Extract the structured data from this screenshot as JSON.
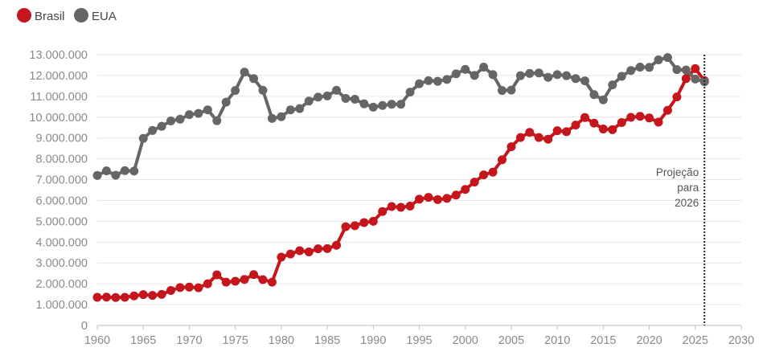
{
  "chart_data": {
    "type": "line",
    "legend": {
      "position": "top-left",
      "entries": [
        "Brasil",
        "EUA"
      ]
    },
    "grid": true,
    "xlim": [
      1960,
      2030
    ],
    "ylim": [
      0,
      13000000
    ],
    "x_ticks": [
      1960,
      1965,
      1970,
      1975,
      1980,
      1985,
      1990,
      1995,
      2000,
      2005,
      2010,
      2015,
      2020,
      2025,
      2030
    ],
    "y_ticks": [
      0,
      1000000,
      2000000,
      3000000,
      4000000,
      5000000,
      6000000,
      7000000,
      8000000,
      9000000,
      10000000,
      11000000,
      12000000,
      13000000
    ],
    "y_tick_labels": [
      "0",
      "1.000.000",
      "2.000.000",
      "3.000.000",
      "4.000.000",
      "5.000.000",
      "6.000.000",
      "7.000.000",
      "8.000.000",
      "9.000.000",
      "10.000.000",
      "11.000.000",
      "12.000.000",
      "13.000.000"
    ],
    "x_tick_labels": [
      "1960",
      "1965",
      "1970",
      "1975",
      "1980",
      "1985",
      "1990",
      "1995",
      "2000",
      "2005",
      "2010",
      "2015",
      "2020",
      "2025",
      "2030"
    ],
    "annotation": {
      "x": 2026,
      "lines": [
        "Projeção",
        "para",
        "2026"
      ]
    },
    "colors": {
      "Brasil": "#c4161c",
      "EUA": "#666666"
    },
    "x": [
      1960,
      1961,
      1962,
      1963,
      1964,
      1965,
      1966,
      1967,
      1968,
      1969,
      1970,
      1971,
      1972,
      1973,
      1974,
      1975,
      1976,
      1977,
      1978,
      1979,
      1980,
      1981,
      1982,
      1983,
      1984,
      1985,
      1986,
      1987,
      1988,
      1989,
      1990,
      1991,
      1992,
      1993,
      1994,
      1995,
      1996,
      1997,
      1998,
      1999,
      2000,
      2001,
      2002,
      2003,
      2004,
      2005,
      2006,
      2007,
      2008,
      2009,
      2010,
      2011,
      2012,
      2013,
      2014,
      2015,
      2016,
      2017,
      2018,
      2019,
      2020,
      2021,
      2022,
      2023,
      2024,
      2025,
      2026
    ],
    "series": [
      {
        "name": "Brasil",
        "values": [
          1350000,
          1360000,
          1340000,
          1350000,
          1420000,
          1480000,
          1440000,
          1490000,
          1680000,
          1820000,
          1840000,
          1810000,
          2000000,
          2430000,
          2080000,
          2120000,
          2210000,
          2440000,
          2200000,
          2080000,
          3280000,
          3430000,
          3590000,
          3530000,
          3680000,
          3690000,
          3850000,
          4740000,
          4790000,
          4940000,
          5000000,
          5470000,
          5710000,
          5670000,
          5730000,
          6060000,
          6150000,
          6040000,
          6100000,
          6260000,
          6530000,
          6880000,
          7230000,
          7360000,
          7950000,
          8580000,
          9020000,
          9270000,
          9020000,
          8940000,
          9350000,
          9300000,
          9620000,
          9980000,
          9710000,
          9430000,
          9400000,
          9740000,
          9990000,
          10040000,
          9960000,
          9760000,
          10330000,
          10970000,
          11850000,
          12330000,
          11750000
        ]
      },
      {
        "name": "EUA",
        "values": [
          7200000,
          7420000,
          7210000,
          7430000,
          7410000,
          8980000,
          9360000,
          9560000,
          9820000,
          9900000,
          10120000,
          10180000,
          10350000,
          9830000,
          10720000,
          11280000,
          12160000,
          11850000,
          11290000,
          9940000,
          10020000,
          10350000,
          10410000,
          10770000,
          10960000,
          11020000,
          11290000,
          10900000,
          10860000,
          10640000,
          10480000,
          10560000,
          10620000,
          10620000,
          11200000,
          11600000,
          11750000,
          11720000,
          11810000,
          12080000,
          12290000,
          12000000,
          12400000,
          12040000,
          11280000,
          11300000,
          11990000,
          12100000,
          12120000,
          11910000,
          12040000,
          11990000,
          11850000,
          11740000,
          11080000,
          10830000,
          11550000,
          11960000,
          12240000,
          12400000,
          12390000,
          12750000,
          12860000,
          12280000,
          12260000,
          11830000,
          11700000
        ]
      }
    ]
  }
}
